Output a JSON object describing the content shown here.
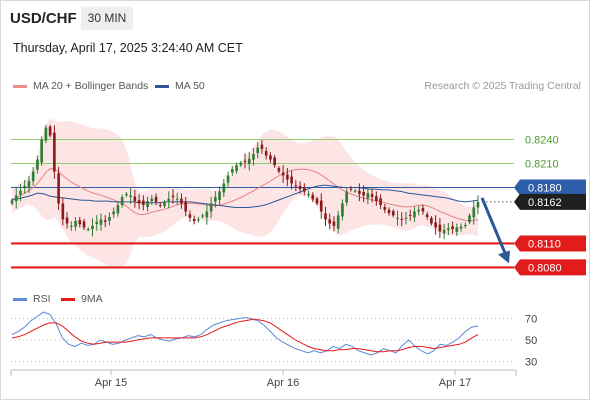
{
  "header": {
    "pair": "USD/CHF",
    "timeframe": "30 MIN",
    "timestamp": "Thursday, April 17, 2025 3:24:40 AM CET"
  },
  "legend": {
    "ma20_label": "MA 20 + Bollinger Bands",
    "ma50_label": "MA 50",
    "research": "Research © 2025 Trading Central",
    "rsi_label": "RSI",
    "rsi_ma_label": "9MA"
  },
  "colors": {
    "candle_up": "#2e7d32",
    "candle_down": "#8b1a1a",
    "bollinger_fill": "#fde0e0",
    "ma20": "#e88080",
    "ma50": "#2b5797",
    "resistance": "#8ecf6e",
    "support": "#e21b1b",
    "pivot": "#2f5ea8",
    "rsi": "#5b8ad6",
    "rsi_ma": "#e21b1b"
  },
  "chart_data": {
    "type": "candlestick",
    "price_range": [
      0.8058,
      0.8292
    ],
    "x_ticks": [
      "Apr 15",
      "Apr 16",
      "Apr 17"
    ],
    "levels": [
      {
        "value": 0.824,
        "label": "0.8240",
        "kind": "resistance"
      },
      {
        "value": 0.821,
        "label": "0.8210",
        "kind": "resistance"
      },
      {
        "value": 0.818,
        "label": "0.8180",
        "kind": "pivot"
      },
      {
        "value": 0.811,
        "label": "0.8110",
        "kind": "support"
      },
      {
        "value": 0.808,
        "label": "0.8080",
        "kind": "support"
      }
    ],
    "last_price": {
      "value": 0.8162,
      "label": "0.8162"
    },
    "close_series": [
      0.8164,
      0.817,
      0.8176,
      0.8182,
      0.8188,
      0.82,
      0.8215,
      0.824,
      0.8255,
      0.8245,
      0.82,
      0.816,
      0.814,
      0.8135,
      0.8132,
      0.8138,
      0.8134,
      0.813,
      0.8128,
      0.8132,
      0.8137,
      0.814,
      0.8137,
      0.8143,
      0.815,
      0.8158,
      0.8168,
      0.8172,
      0.817,
      0.8163,
      0.816,
      0.8158,
      0.8163,
      0.8166,
      0.8162,
      0.8158,
      0.8162,
      0.8166,
      0.8168,
      0.8166,
      0.816,
      0.815,
      0.8142,
      0.8138,
      0.814,
      0.8145,
      0.815,
      0.816,
      0.8168,
      0.8175,
      0.8185,
      0.8195,
      0.8203,
      0.8208,
      0.8211,
      0.8213,
      0.8216,
      0.8222,
      0.823,
      0.8228,
      0.822,
      0.8215,
      0.8208,
      0.82,
      0.8195,
      0.819,
      0.8185,
      0.8182,
      0.8178,
      0.8175,
      0.8172,
      0.8165,
      0.816,
      0.815,
      0.814,
      0.8135,
      0.8132,
      0.8145,
      0.816,
      0.8175,
      0.8178,
      0.8176,
      0.8172,
      0.817,
      0.8173,
      0.8168,
      0.8163,
      0.8158,
      0.8152,
      0.8148,
      0.8145,
      0.8142,
      0.814,
      0.8142,
      0.8145,
      0.815,
      0.8152,
      0.815,
      0.8143,
      0.8135,
      0.813,
      0.8125,
      0.8127,
      0.8129,
      0.8128,
      0.813,
      0.8131,
      0.8133,
      0.8145,
      0.8155,
      0.8162
    ],
    "ma50_series": [
      0.8165,
      0.8166,
      0.8168,
      0.817,
      0.8173,
      0.8172,
      0.8169,
      0.8168,
      0.8167,
      0.8166,
      0.8165,
      0.8164,
      0.8164,
      0.8163,
      0.8163,
      0.8163,
      0.8162,
      0.8162,
      0.8162,
      0.8162,
      0.8161,
      0.8161,
      0.8161,
      0.8161,
      0.8162,
      0.8162,
      0.8162,
      0.8162,
      0.8162,
      0.8161,
      0.816,
      0.8159,
      0.8158,
      0.8157,
      0.8156,
      0.8155,
      0.8155,
      0.8155,
      0.8156,
      0.8157,
      0.8159,
      0.8162,
      0.8165,
      0.8168,
      0.8171,
      0.8174,
      0.8177,
      0.818,
      0.8182,
      0.8183,
      0.8182,
      0.8181,
      0.818,
      0.818,
      0.818,
      0.8179,
      0.8178,
      0.8178,
      0.8177,
      0.8177,
      0.8176,
      0.8175,
      0.8173,
      0.8172,
      0.8171,
      0.817,
      0.8169,
      0.8168,
      0.8167,
      0.8165,
      0.8163,
      0.8162,
      0.8163,
      0.8164
    ],
    "rsi_axis": {
      "range": [
        22,
        78
      ],
      "ticks": [
        70,
        50,
        30
      ]
    },
    "rsi_series": [
      55,
      58,
      62,
      68,
      72,
      76,
      74,
      65,
      52,
      46,
      44,
      47,
      45,
      46,
      50,
      48,
      46,
      47,
      50,
      52,
      54,
      53,
      55,
      52,
      50,
      49,
      51,
      52,
      54,
      53,
      55,
      60,
      64,
      66,
      68,
      69,
      70,
      71,
      70,
      68,
      64,
      58,
      52,
      48,
      45,
      42,
      40,
      38,
      40,
      38,
      40,
      44,
      42,
      46,
      44,
      40,
      38,
      36,
      38,
      42,
      40,
      38,
      45,
      50,
      44,
      40,
      37,
      40,
      46,
      45,
      48,
      52,
      58,
      62,
      63
    ],
    "rsi_ma_series": [
      52,
      53,
      55,
      58,
      61,
      64,
      66,
      66,
      63,
      58,
      53,
      49,
      47,
      46,
      47,
      48,
      48,
      48,
      48,
      49,
      50,
      51,
      52,
      52,
      52,
      52,
      52,
      52,
      52,
      52,
      53,
      55,
      58,
      61,
      63,
      65,
      67,
      68,
      69,
      69,
      68,
      66,
      62,
      58,
      54,
      50,
      47,
      44,
      42,
      41,
      40,
      40,
      41,
      41,
      42,
      42,
      41,
      40,
      39,
      39,
      40,
      40,
      41,
      43,
      44,
      44,
      43,
      42,
      43,
      44,
      45,
      46,
      48,
      52,
      55
    ]
  }
}
